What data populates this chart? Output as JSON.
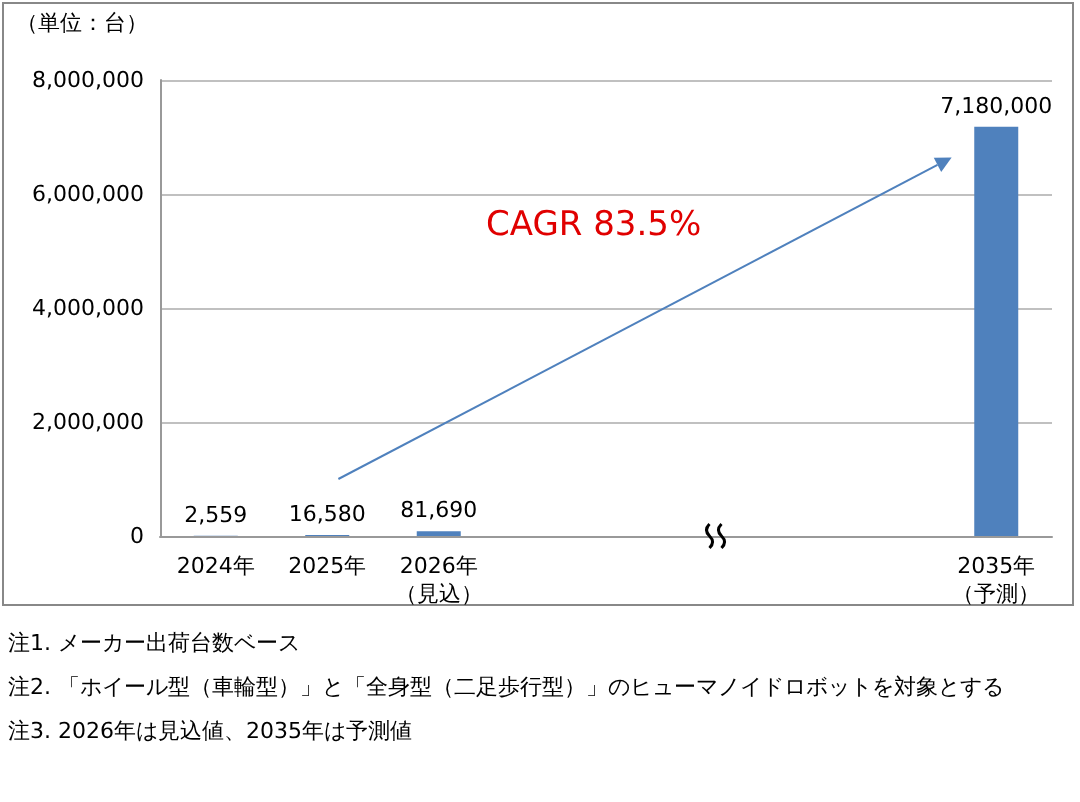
{
  "chart_data": {
    "type": "bar",
    "ylabel": "（単位：台）",
    "categories": [
      "2024年",
      "2025年",
      "2026年（見込）",
      null,
      null,
      null,
      null,
      "2035年（予測）"
    ],
    "values": [
      2559,
      16580,
      81690,
      null,
      null,
      null,
      null,
      7180000
    ],
    "color": "#4f81bd",
    "value_labels": [
      "2,559",
      "16,580",
      "81,690",
      null,
      null,
      null,
      null,
      "7,180,000"
    ],
    "ylim": [
      0,
      8000000
    ],
    "yticks": [
      0,
      {
        "value": 2000000,
        "label": "2,000,000"
      },
      {
        "value": 4000000,
        "label": "4,000,000"
      },
      {
        "value": 6000000,
        "label": "6,000,000"
      },
      {
        "value": 8000000,
        "label": "8,000,000"
      }
    ],
    "grid": "y",
    "annotations": [
      "CAGR 83.5%",
      "注1. メーカー出荷台数ベース",
      "注2. 「ホイール型（車輪型）」と「全身型（二足歩行型）」のヒューマノイドロボットを対象とする",
      "注3. 2026年は見込値、2035年は予測値"
    ]
  }
}
